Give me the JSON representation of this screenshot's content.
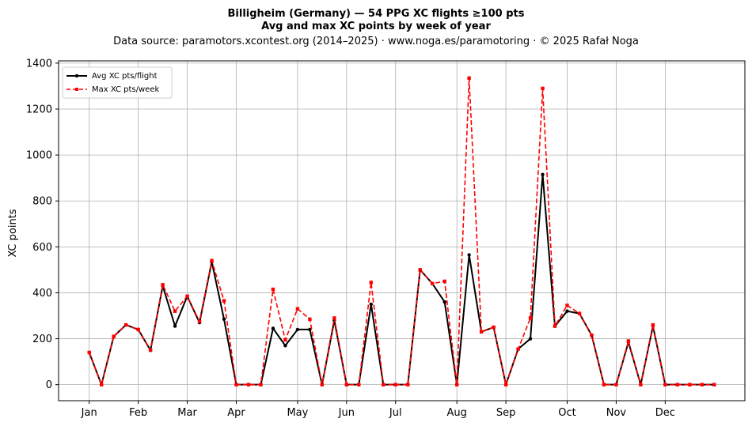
{
  "chart_data": {
    "type": "line",
    "title": "Billigheim (Germany)  —  54 PPG XC flights ≥100 pts",
    "subtitle": "Avg and max XC points by week of year",
    "source_line": "Data source: paramotors.xcontest.org (2014–2025)  ·  www.noga.es/paramotoring  ·  © 2025 Rafał Noga",
    "xlabel": "",
    "ylabel": "XC points",
    "x_ticks": [
      {
        "label": "Jan",
        "week": 1
      },
      {
        "label": "Feb",
        "week": 5
      },
      {
        "label": "Mar",
        "week": 9
      },
      {
        "label": "Apr",
        "week": 13
      },
      {
        "label": "May",
        "week": 18
      },
      {
        "label": "Jun",
        "week": 22
      },
      {
        "label": "Jul",
        "week": 26
      },
      {
        "label": "Aug",
        "week": 31
      },
      {
        "label": "Sep",
        "week": 35
      },
      {
        "label": "Oct",
        "week": 40
      },
      {
        "label": "Nov",
        "week": 44
      },
      {
        "label": "Dec",
        "week": 48
      }
    ],
    "xlim": [
      -1.5,
      54.5
    ],
    "ylim": [
      -70,
      1410
    ],
    "y_ticks": [
      0,
      200,
      400,
      600,
      800,
      1000,
      1200,
      1400
    ],
    "grid": true,
    "legend_position": "top-left",
    "x": [
      1,
      2,
      3,
      4,
      5,
      6,
      7,
      8,
      9,
      10,
      11,
      12,
      13,
      14,
      15,
      16,
      17,
      18,
      19,
      20,
      21,
      22,
      23,
      24,
      25,
      26,
      27,
      28,
      29,
      30,
      31,
      32,
      33,
      34,
      35,
      36,
      37,
      38,
      39,
      40,
      41,
      42,
      43,
      44,
      45,
      46,
      47,
      48,
      49,
      50,
      51,
      52
    ],
    "series": [
      {
        "name": "Avg XC pts/flight",
        "color": "#000000",
        "style": "solid",
        "marker": "circle",
        "values": [
          140,
          0,
          210,
          260,
          240,
          150,
          430,
          255,
          385,
          270,
          535,
          285,
          0,
          0,
          0,
          245,
          170,
          240,
          240,
          0,
          280,
          0,
          0,
          350,
          0,
          0,
          0,
          500,
          440,
          360,
          0,
          565,
          230,
          250,
          0,
          155,
          200,
          915,
          255,
          320,
          310,
          215,
          0,
          0,
          185,
          0,
          255,
          0,
          0,
          0,
          0,
          0
        ]
      },
      {
        "name": "Max XC pts/week",
        "color": "#ff0000",
        "style": "dashed",
        "marker": "square",
        "values": [
          140,
          0,
          210,
          260,
          240,
          150,
          435,
          320,
          385,
          275,
          540,
          365,
          0,
          0,
          0,
          415,
          195,
          330,
          285,
          0,
          290,
          0,
          0,
          445,
          0,
          0,
          0,
          500,
          440,
          450,
          0,
          1335,
          230,
          250,
          0,
          155,
          290,
          1290,
          255,
          345,
          310,
          215,
          0,
          0,
          190,
          0,
          260,
          0,
          0,
          0,
          0,
          0
        ]
      }
    ]
  }
}
